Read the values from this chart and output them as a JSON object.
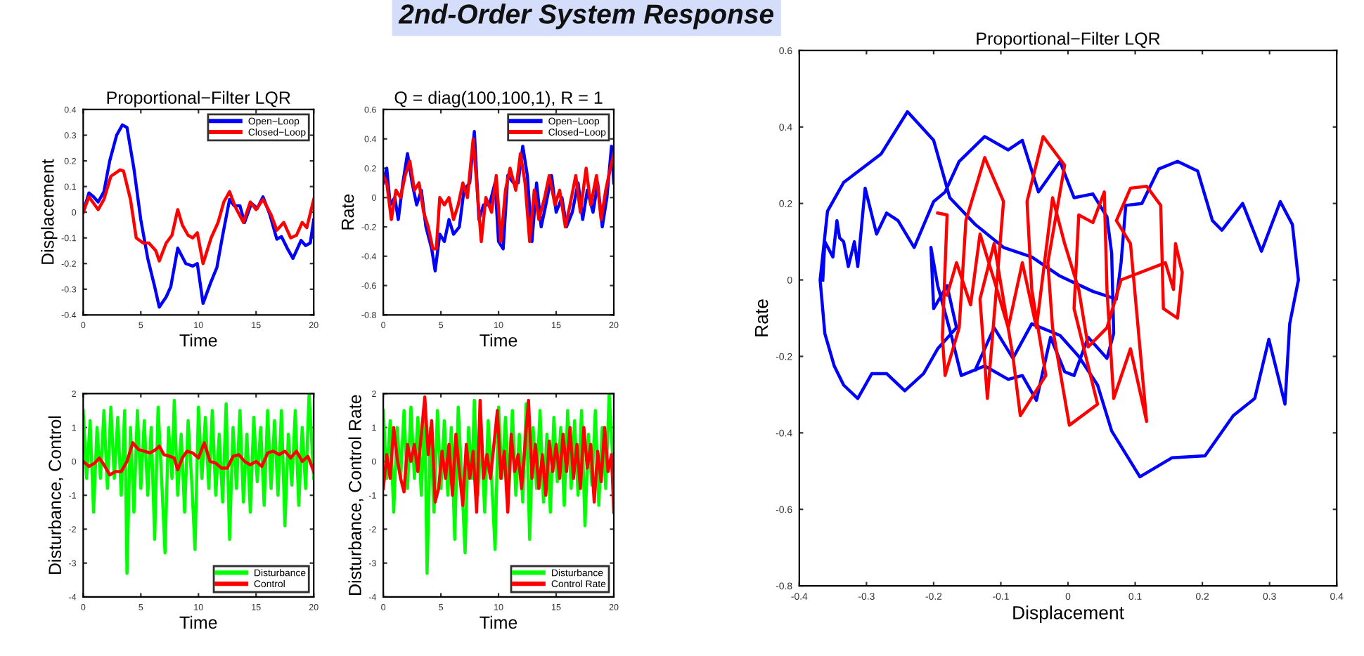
{
  "chart_data": [
    {
      "type": "line",
      "title": "Proportional−Filter LQR",
      "xlabel": "Time",
      "ylabel": "Displacement",
      "annotations": [
        "2nd-Order System Response"
      ],
      "xlim": [
        0,
        20
      ],
      "ylim": [
        -0.4,
        0.4
      ],
      "xticks": [
        0,
        5,
        10,
        15,
        20
      ],
      "yticks": [
        -0.4,
        -0.3,
        -0.2,
        -0.1,
        0,
        0.1,
        0.2,
        0.3,
        0.4
      ],
      "grid": false,
      "legend": "top right",
      "series": [
        {
          "name": "Open−Loop",
          "color": "#0000ff",
          "x": [
            0,
            0.5,
            0.9,
            1.3,
            1.8,
            2.3,
            2.9,
            3.4,
            3.8,
            4.4,
            5.0,
            5.6,
            6.2,
            6.6,
            7.2,
            7.6,
            8.2,
            8.9,
            9.5,
            9.9,
            10.4,
            11.1,
            11.6,
            12.1,
            12.7,
            13.1,
            13.6,
            14.0,
            14.6,
            15.1,
            15.6,
            16.2,
            16.8,
            17.2,
            17.7,
            18.2,
            18.9,
            19.3,
            19.7,
            20
          ],
          "values": [
            0,
            0.075,
            0.06,
            0.04,
            0.08,
            0.2,
            0.3,
            0.34,
            0.33,
            0.17,
            -0.03,
            -0.18,
            -0.29,
            -0.37,
            -0.33,
            -0.29,
            -0.14,
            -0.2,
            -0.21,
            -0.2,
            -0.355,
            -0.27,
            -0.215,
            -0.09,
            0.05,
            0.025,
            0.025,
            -0.04,
            0.035,
            0.015,
            0.06,
            -0.01,
            -0.105,
            -0.095,
            -0.14,
            -0.18,
            -0.11,
            -0.13,
            -0.12,
            -0.03
          ]
        },
        {
          "name": "Closed−Loop",
          "color": "#ff0000",
          "x": [
            0,
            0.5,
            1.3,
            1.8,
            2.4,
            3.2,
            3.5,
            4.1,
            4.6,
            5.2,
            5.7,
            6.3,
            6.6,
            7.2,
            7.7,
            8.2,
            8.6,
            9.1,
            9.5,
            9.9,
            10.4,
            11.1,
            11.7,
            12.2,
            12.7,
            13.2,
            13.9,
            14.5,
            15.0,
            15.6,
            16.3,
            16.8,
            17.4,
            18.0,
            18.5,
            19.0,
            19.4,
            20
          ],
          "values": [
            0,
            0.06,
            0.01,
            0.05,
            0.14,
            0.165,
            0.16,
            0.05,
            -0.1,
            -0.12,
            -0.12,
            -0.15,
            -0.19,
            -0.12,
            -0.09,
            0.01,
            -0.05,
            -0.09,
            -0.1,
            -0.08,
            -0.2,
            -0.1,
            -0.04,
            0.04,
            0.08,
            0.02,
            -0.04,
            0.04,
            0.01,
            0.05,
            -0.01,
            -0.07,
            -0.04,
            -0.1,
            -0.09,
            -0.04,
            -0.06,
            0.05
          ]
        }
      ]
    },
    {
      "type": "line",
      "title": "Q = diag(100,100,1), R = 1",
      "xlabel": "Time",
      "ylabel": "Rate",
      "xlim": [
        0,
        20
      ],
      "ylim": [
        -0.8,
        0.6
      ],
      "xticks": [
        0,
        5,
        10,
        15,
        20
      ],
      "yticks": [
        -0.8,
        -0.6,
        -0.4,
        -0.2,
        0,
        0.2,
        0.4,
        0.6
      ],
      "grid": false,
      "legend": "top right",
      "series": [
        {
          "name": "Open−Loop",
          "color": "#0000ff",
          "x": [
            0,
            0.3,
            0.6,
            1.0,
            1.3,
            1.7,
            2.1,
            2.5,
            2.9,
            3.3,
            3.7,
            4.2,
            4.5,
            4.9,
            5.3,
            5.7,
            6.1,
            6.6,
            7.0,
            7.5,
            7.9,
            8.3,
            8.7,
            9.2,
            9.7,
            10.0,
            10.4,
            10.8,
            11.3,
            11.7,
            12.1,
            12.5,
            12.9,
            13.3,
            13.7,
            14.1,
            14.6,
            15.0,
            15.5,
            15.9,
            16.4,
            16.9,
            17.3,
            17.7,
            18.2,
            18.6,
            19.0,
            19.4,
            19.8,
            20
          ],
          "values": [
            0.1,
            0.2,
            -0.05,
            0,
            -0.15,
            0.1,
            0.3,
            0.1,
            -0.05,
            0.05,
            -0.2,
            -0.35,
            -0.5,
            -0.25,
            -0.3,
            -0.15,
            -0.25,
            -0.2,
            0.05,
            0.1,
            0.45,
            -0.15,
            -0.05,
            -0.05,
            0.1,
            -0.3,
            -0.35,
            0.15,
            0.1,
            0.1,
            0.35,
            0.15,
            -0.3,
            0.1,
            -0.2,
            -0.05,
            0.15,
            -0.1,
            0,
            -0.2,
            -0.1,
            0.1,
            -0.15,
            0.05,
            -0.1,
            0.1,
            -0.2,
            0,
            0.35,
            0.1
          ]
        },
        {
          "name": "Closed−Loop",
          "color": "#ff0000",
          "x": [
            0,
            0.3,
            0.7,
            1.1,
            1.5,
            1.9,
            2.3,
            2.7,
            3.1,
            3.5,
            3.9,
            4.3,
            4.6,
            4.9,
            5.3,
            5.7,
            6.1,
            6.5,
            6.9,
            7.3,
            7.8,
            8.2,
            8.5,
            8.9,
            9.4,
            9.8,
            10.2,
            10.6,
            11.0,
            11.5,
            11.9,
            12.3,
            12.7,
            13.1,
            13.5,
            14.0,
            14.4,
            14.9,
            15.3,
            15.8,
            16.2,
            16.7,
            17.1,
            17.6,
            18.0,
            18.5,
            18.9,
            19.3,
            19.7,
            20
          ],
          "values": [
            0.15,
            0.1,
            -0.15,
            0.05,
            0,
            0.15,
            0.25,
            0.05,
            0.1,
            -0.1,
            -0.2,
            -0.35,
            -0.35,
            0,
            -0.05,
            0,
            -0.15,
            -0.05,
            0.1,
            0,
            0.4,
            0,
            -0.3,
            0,
            -0.1,
            0.15,
            -0.3,
            0.05,
            0.2,
            0.05,
            0.3,
            0.1,
            -0.3,
            0.05,
            -0.15,
            0,
            0.15,
            -0.05,
            0.05,
            -0.2,
            -0.05,
            0.15,
            -0.1,
            0.2,
            -0.05,
            0.15,
            -0.15,
            0.05,
            0.2,
            0.3
          ]
        }
      ]
    },
    {
      "type": "line",
      "xlabel": "Time",
      "ylabel": "Disturbance, Control",
      "xlim": [
        0,
        20
      ],
      "ylim": [
        -4,
        2
      ],
      "xticks": [
        0,
        5,
        10,
        15,
        20
      ],
      "yticks": [
        -4,
        -3,
        -2,
        -1,
        0,
        1,
        2
      ],
      "grid": false,
      "legend": "bottom right",
      "series": [
        {
          "name": "Disturbance",
          "color": "#00ff00",
          "x": [
            0,
            0.3,
            0.6,
            0.9,
            1.2,
            1.5,
            1.8,
            2.1,
            2.4,
            2.7,
            3.0,
            3.3,
            3.6,
            3.8,
            4.1,
            4.4,
            4.7,
            5.0,
            5.3,
            5.6,
            5.9,
            6.2,
            6.5,
            6.8,
            7.1,
            7.4,
            7.7,
            7.9,
            8.2,
            8.5,
            8.8,
            9.1,
            9.4,
            9.7,
            10.0,
            10.3,
            10.6,
            10.9,
            11.2,
            11.5,
            11.8,
            12.1,
            12.4,
            12.7,
            13.0,
            13.3,
            13.6,
            13.9,
            14.2,
            14.5,
            14.8,
            15.1,
            15.4,
            15.7,
            16.0,
            16.3,
            16.6,
            16.9,
            17.2,
            17.5,
            17.8,
            18.1,
            18.4,
            18.7,
            19.0,
            19.3,
            19.6,
            20
          ],
          "values": [
            1.5,
            -0.5,
            1.2,
            -1.5,
            1.0,
            -0.5,
            1.5,
            -0.8,
            1.6,
            -0.5,
            1.3,
            -1.0,
            1.5,
            -3.3,
            1.0,
            -1.5,
            1.5,
            -0.8,
            1.2,
            -1.0,
            1.0,
            -2.3,
            1.6,
            -0.5,
            -2.7,
            1.0,
            -0.5,
            1.8,
            -1.0,
            0.8,
            -1.5,
            1.2,
            -0.5,
            -2.6,
            1.6,
            -0.5,
            1.3,
            -0.8,
            1.5,
            -1.0,
            0.8,
            -1.2,
            1.7,
            -2.3,
            1.0,
            -0.8,
            1.5,
            -1.2,
            0.8,
            -1.5,
            1.3,
            -0.6,
            1.0,
            -1.3,
            1.5,
            -0.8,
            1.2,
            -1.0,
            1.5,
            -1.9,
            0.8,
            -0.7,
            1.5,
            -1.3,
            1.0,
            -0.8,
            2.0,
            -0.5
          ]
        },
        {
          "name": "Control",
          "color": "#ff0000",
          "x": [
            0,
            0.5,
            1.0,
            1.4,
            1.8,
            2.3,
            2.8,
            3.3,
            3.8,
            4.3,
            4.8,
            5.3,
            5.8,
            6.3,
            6.6,
            7.0,
            7.5,
            7.9,
            8.2,
            8.6,
            9.0,
            9.5,
            10.0,
            10.5,
            11.0,
            11.5,
            12.0,
            12.5,
            13.0,
            13.5,
            14.0,
            14.5,
            15.0,
            15.5,
            16.0,
            16.5,
            17.0,
            17.5,
            18.0,
            18.5,
            19.0,
            19.5,
            20
          ],
          "values": [
            0,
            -0.15,
            -0.05,
            0.1,
            -0.1,
            -0.4,
            -0.3,
            -0.3,
            0,
            0.55,
            0.35,
            0.3,
            0.25,
            0.35,
            0.45,
            0.2,
            0.15,
            0.1,
            -0.25,
            0.1,
            0.3,
            0.25,
            0.1,
            0.55,
            0,
            -0.05,
            -0.2,
            -0.2,
            0.15,
            0.2,
            0,
            -0.1,
            0,
            -0.15,
            0.25,
            0.3,
            0.2,
            0.3,
            0.1,
            0.3,
            0,
            0.15,
            -0.3
          ]
        }
      ]
    },
    {
      "type": "line",
      "xlabel": "Time",
      "ylabel": "Disturbance, Control Rate",
      "xlim": [
        0,
        20
      ],
      "ylim": [
        -4,
        2
      ],
      "xticks": [
        0,
        5,
        10,
        15,
        20
      ],
      "yticks": [
        -4,
        -3,
        -2,
        -1,
        0,
        1,
        2
      ],
      "grid": false,
      "legend": "bottom right",
      "series": [
        {
          "name": "Disturbance",
          "color": "#00ff00",
          "x": [
            0,
            0.3,
            0.6,
            0.9,
            1.2,
            1.5,
            1.8,
            2.1,
            2.4,
            2.7,
            3.0,
            3.3,
            3.6,
            3.8,
            4.1,
            4.4,
            4.7,
            5.0,
            5.3,
            5.6,
            5.9,
            6.2,
            6.5,
            6.8,
            7.1,
            7.4,
            7.7,
            7.9,
            8.2,
            8.5,
            8.8,
            9.1,
            9.4,
            9.7,
            10.0,
            10.3,
            10.6,
            10.9,
            11.2,
            11.5,
            11.8,
            12.1,
            12.4,
            12.7,
            13.0,
            13.3,
            13.6,
            13.9,
            14.2,
            14.5,
            14.8,
            15.1,
            15.4,
            15.7,
            16.0,
            16.3,
            16.6,
            16.9,
            17.2,
            17.5,
            17.8,
            18.1,
            18.4,
            18.7,
            19.0,
            19.3,
            19.6,
            20
          ],
          "values": [
            1.5,
            -0.5,
            1.2,
            -1.5,
            1.0,
            -0.5,
            1.5,
            -0.8,
            1.6,
            -0.5,
            1.3,
            -1.0,
            1.5,
            -3.3,
            1.0,
            -1.5,
            1.5,
            -0.8,
            1.2,
            -1.0,
            1.0,
            -2.3,
            1.6,
            -0.5,
            -2.7,
            1.0,
            -0.5,
            1.8,
            -1.0,
            0.8,
            -1.5,
            1.2,
            -0.5,
            -2.6,
            1.6,
            -0.5,
            1.3,
            -0.8,
            1.5,
            -1.0,
            0.8,
            -1.2,
            1.7,
            -2.3,
            1.0,
            -0.8,
            1.5,
            -1.2,
            0.8,
            -1.5,
            1.3,
            -0.6,
            1.0,
            -1.3,
            1.5,
            -0.8,
            1.2,
            -1.0,
            1.5,
            -1.9,
            0.8,
            -0.7,
            1.5,
            -1.3,
            1.0,
            -0.8,
            2.0,
            -0.5
          ]
        },
        {
          "name": "Control Rate",
          "color": "#ff0000",
          "x": [
            0,
            0.3,
            0.6,
            0.9,
            1.2,
            1.5,
            1.8,
            2.1,
            2.4,
            2.7,
            3.0,
            3.3,
            3.6,
            3.9,
            4.2,
            4.5,
            4.8,
            5.1,
            5.4,
            5.7,
            6.0,
            6.3,
            6.6,
            6.9,
            7.2,
            7.5,
            7.8,
            8.1,
            8.4,
            8.7,
            9.0,
            9.3,
            9.6,
            9.9,
            10.2,
            10.5,
            10.8,
            11.1,
            11.4,
            11.7,
            12.0,
            12.3,
            12.6,
            12.9,
            13.2,
            13.5,
            13.8,
            14.1,
            14.4,
            14.7,
            15.0,
            15.3,
            15.6,
            15.9,
            16.2,
            16.5,
            16.8,
            17.1,
            17.4,
            17.7,
            18.0,
            18.3,
            18.6,
            18.9,
            19.2,
            19.5,
            19.8,
            20
          ],
          "values": [
            -0.8,
            0.2,
            -0.5,
            1.0,
            0.1,
            -0.5,
            -0.9,
            0.5,
            0,
            0.5,
            -0.3,
            0.8,
            1.9,
            0.2,
            1.2,
            -1.2,
            -0.8,
            0.3,
            -0.5,
            0.5,
            -1.0,
            0.8,
            -0.3,
            -1.3,
            0.5,
            -0.5,
            0.3,
            -1.5,
            1.8,
            -0.5,
            0.2,
            -0.5,
            0.5,
            1.5,
            -0.5,
            0.3,
            -1.5,
            0.8,
            -0.3,
            0.2,
            -0.8,
            0.5,
            1.8,
            -0.5,
            0.5,
            -0.8,
            0.2,
            -1.0,
            0.6,
            -0.3,
            0.5,
            -0.5,
            0.8,
            -0.3,
            1.0,
            -0.5,
            0.5,
            -0.8,
            1.0,
            -0.2,
            0.5,
            -1.2,
            0.3,
            -0.6,
            1.0,
            -0.3,
            0.2,
            -1.5
          ]
        }
      ]
    },
    {
      "type": "line",
      "title": "Proportional−Filter LQR",
      "xlabel": "Displacement",
      "ylabel": "Rate",
      "xlim": [
        -0.4,
        0.4
      ],
      "ylim": [
        -0.8,
        0.6
      ],
      "xticks": [
        -0.4,
        -0.3,
        -0.2,
        -0.1,
        0,
        0.1,
        0.2,
        0.3,
        0.4
      ],
      "yticks": [
        -0.8,
        -0.6,
        -0.4,
        -0.2,
        0,
        0.2,
        0.4,
        0.6
      ],
      "grid": false,
      "series": [
        {
          "color": "#0000ff",
          "x": [
            -0.365,
            -0.362,
            -0.35,
            -0.344,
            -0.34,
            -0.334,
            -0.327,
            -0.318,
            -0.313,
            -0.302,
            -0.285,
            -0.27,
            -0.253,
            -0.229,
            -0.2,
            -0.183,
            -0.162,
            -0.124,
            -0.089,
            -0.068,
            -0.044,
            -0.012,
            0.009,
            0.037,
            0.058,
            0.065,
            0.068,
            0.058,
            0.03,
            0.009,
            -0.005,
            -0.026,
            -0.047,
            -0.068,
            -0.089,
            -0.124,
            -0.159,
            -0.173,
            -0.194,
            -0.204,
            -0.2,
            -0.18,
            -0.166,
            -0.194,
            -0.215,
            -0.243,
            -0.27,
            -0.292,
            -0.313,
            -0.334,
            -0.348,
            -0.362,
            -0.369,
            -0.358,
            -0.334,
            -0.278,
            -0.239,
            -0.2,
            -0.176,
            -0.138,
            -0.096,
            -0.054,
            -0.012,
            0.037,
            0.072,
            0.079,
            0.086,
            0.11,
            0.135,
            0.163,
            0.193,
            0.215,
            0.229,
            0.26,
            0.288,
            0.316,
            0.334,
            0.343,
            0.33,
            0.323,
            0.299,
            0.278,
            0.246,
            0.204,
            0.155,
            0.107,
            0.065,
            0.044,
            0.016,
            -0.012,
            -0.054,
            -0.082,
            -0.11,
            -0.138
          ],
          "values": [
            0,
            0.1,
            0.06,
            0.155,
            0.11,
            0.1,
            0.035,
            0.1,
            0.035,
            0.24,
            0.12,
            0.175,
            0.155,
            0.085,
            0.205,
            0.23,
            0.31,
            0.375,
            0.34,
            0.365,
            0.23,
            0.31,
            0.215,
            0.225,
            0.165,
            0.07,
            -0.14,
            -0.205,
            -0.15,
            -0.25,
            -0.24,
            -0.15,
            -0.315,
            -0.25,
            -0.26,
            -0.225,
            -0.25,
            -0.15,
            -0.015,
            0.085,
            -0.075,
            -0.015,
            -0.125,
            -0.18,
            -0.245,
            -0.29,
            -0.245,
            -0.245,
            -0.31,
            -0.275,
            -0.225,
            -0.14,
            0,
            0.18,
            0.255,
            0.33,
            0.44,
            0.365,
            0.215,
            0.145,
            0.085,
            0.06,
            0.01,
            -0.03,
            -0.05,
            0.045,
            0.195,
            0.2,
            0.29,
            0.31,
            0.285,
            0.155,
            0.13,
            0.2,
            0.075,
            0.205,
            0.145,
            0,
            -0.115,
            -0.325,
            -0.155,
            -0.31,
            -0.355,
            -0.46,
            -0.465,
            -0.515,
            -0.395,
            -0.275,
            -0.2,
            -0.145,
            -0.115,
            -0.205,
            -0.125,
            -0.235
          ]
        },
        {
          "color": "#ff0000",
          "x": [
            -0.194,
            -0.18,
            -0.187,
            -0.183,
            -0.162,
            -0.152,
            -0.124,
            -0.096,
            -0.12,
            -0.131,
            -0.11,
            -0.082,
            -0.071,
            -0.033,
            -0.054,
            -0.061,
            -0.037,
            -0.005,
            -0.03,
            -0.023,
            0.002,
            0.044,
            0.009,
            0.016,
            0.037,
            0.054,
            0.058,
            0.068,
            0.093,
            0.117,
            0.093,
            0.072,
            0.093,
            0.117,
            0.138,
            0.142,
            0.163,
            0.17,
            0.16,
            0.157,
            0.145,
            0.079,
            0.058,
            0.03,
            0.016,
            -0.005,
            -0.023,
            -0.047,
            -0.068,
            -0.089,
            -0.11,
            -0.131,
            -0.145,
            -0.166,
            -0.18
          ],
          "values": [
            0.175,
            0.17,
            -0.15,
            -0.25,
            -0.125,
            0.155,
            0.32,
            0.205,
            -0.31,
            -0.05,
            0.095,
            -0.2,
            -0.355,
            -0.25,
            -0.025,
            0.205,
            0.375,
            0.3,
            0.045,
            -0.125,
            -0.38,
            -0.325,
            -0.075,
            0.17,
            0.15,
            0.23,
            -0.025,
            -0.31,
            -0.18,
            -0.37,
            0.095,
            0.155,
            0.24,
            0.245,
            0.195,
            -0.075,
            -0.1,
            0.02,
            0.095,
            -0.025,
            0.045,
            0,
            -0.125,
            -0.175,
            -0.025,
            0.095,
            0.215,
            -0.125,
            0.045,
            -0.125,
            0,
            0.12,
            -0.065,
            0.045,
            -0.04
          ]
        }
      ]
    }
  ]
}
